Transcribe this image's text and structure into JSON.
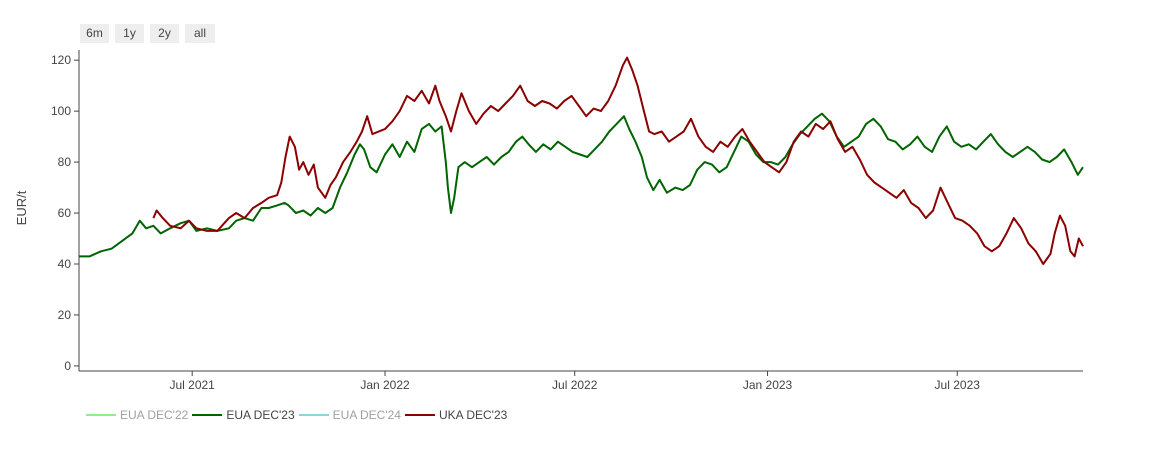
{
  "range_buttons": [
    "6m",
    "1y",
    "2y",
    "all"
  ],
  "colors": {
    "eua_dec22": "#90ee90",
    "eua_dec23": "#006400",
    "eua_dec24": "#8fd3dd",
    "uka_dec23": "#8b0000",
    "axis": "#444444",
    "text": "#444444"
  },
  "chart_data": {
    "type": "line",
    "ylabel": "EUR/t",
    "xlabel": "",
    "ylim": [
      -2,
      124
    ],
    "y_ticks": [
      "0",
      "20",
      "40",
      "60",
      "80",
      "100",
      "120"
    ],
    "x_range": [
      "2021-03-15",
      "2023-10-29"
    ],
    "x_ticks": [
      {
        "date": "2021-07-01",
        "label": "Jul 2021"
      },
      {
        "date": "2022-01-01",
        "label": "Jan 2022"
      },
      {
        "date": "2022-07-01",
        "label": "Jul 2022"
      },
      {
        "date": "2023-01-01",
        "label": "Jan 2023"
      },
      {
        "date": "2023-07-01",
        "label": "Jul 2023"
      }
    ],
    "legend_position": "bottom-left",
    "grid": false,
    "series": [
      {
        "name": "EUA DEC'22",
        "color": "#90ee90",
        "visible": false,
        "points": []
      },
      {
        "name": "EUA DEC'23",
        "color": "#006400",
        "visible": true,
        "points": [
          [
            "2021-03-15",
            43
          ],
          [
            "2021-03-25",
            43
          ],
          [
            "2021-04-05",
            45
          ],
          [
            "2021-04-15",
            46
          ],
          [
            "2021-04-25",
            49
          ],
          [
            "2021-05-05",
            52
          ],
          [
            "2021-05-12",
            57
          ],
          [
            "2021-05-18",
            54
          ],
          [
            "2021-05-25",
            55
          ],
          [
            "2021-06-01",
            52
          ],
          [
            "2021-06-10",
            54
          ],
          [
            "2021-06-20",
            56
          ],
          [
            "2021-06-28",
            57
          ],
          [
            "2021-07-05",
            53
          ],
          [
            "2021-07-15",
            54
          ],
          [
            "2021-07-25",
            53
          ],
          [
            "2021-08-05",
            54
          ],
          [
            "2021-08-12",
            57
          ],
          [
            "2021-08-20",
            58
          ],
          [
            "2021-08-28",
            57
          ],
          [
            "2021-09-05",
            62
          ],
          [
            "2021-09-12",
            62
          ],
          [
            "2021-09-20",
            63
          ],
          [
            "2021-09-27",
            64
          ],
          [
            "2021-10-01",
            63
          ],
          [
            "2021-10-08",
            60
          ],
          [
            "2021-10-15",
            61
          ],
          [
            "2021-10-22",
            59
          ],
          [
            "2021-10-29",
            62
          ],
          [
            "2021-11-05",
            60
          ],
          [
            "2021-11-12",
            62
          ],
          [
            "2021-11-19",
            70
          ],
          [
            "2021-11-26",
            76
          ],
          [
            "2021-12-03",
            83
          ],
          [
            "2021-12-08",
            87
          ],
          [
            "2021-12-12",
            85
          ],
          [
            "2021-12-18",
            78
          ],
          [
            "2021-12-24",
            76
          ],
          [
            "2022-01-01",
            83
          ],
          [
            "2022-01-08",
            87
          ],
          [
            "2022-01-15",
            82
          ],
          [
            "2022-01-22",
            88
          ],
          [
            "2022-01-29",
            84
          ],
          [
            "2022-02-05",
            93
          ],
          [
            "2022-02-12",
            95
          ],
          [
            "2022-02-18",
            92
          ],
          [
            "2022-02-24",
            94
          ],
          [
            "2022-02-28",
            80
          ],
          [
            "2022-03-02",
            70
          ],
          [
            "2022-03-05",
            60
          ],
          [
            "2022-03-08",
            66
          ],
          [
            "2022-03-12",
            78
          ],
          [
            "2022-03-18",
            80
          ],
          [
            "2022-03-25",
            78
          ],
          [
            "2022-04-01",
            80
          ],
          [
            "2022-04-08",
            82
          ],
          [
            "2022-04-15",
            79
          ],
          [
            "2022-04-22",
            82
          ],
          [
            "2022-04-29",
            84
          ],
          [
            "2022-05-06",
            88
          ],
          [
            "2022-05-12",
            90
          ],
          [
            "2022-05-18",
            87
          ],
          [
            "2022-05-25",
            84
          ],
          [
            "2022-06-01",
            87
          ],
          [
            "2022-06-08",
            85
          ],
          [
            "2022-06-15",
            88
          ],
          [
            "2022-06-22",
            86
          ],
          [
            "2022-06-29",
            84
          ],
          [
            "2022-07-06",
            83
          ],
          [
            "2022-07-13",
            82
          ],
          [
            "2022-07-20",
            85
          ],
          [
            "2022-07-27",
            88
          ],
          [
            "2022-08-03",
            92
          ],
          [
            "2022-08-10",
            95
          ],
          [
            "2022-08-17",
            98
          ],
          [
            "2022-08-22",
            93
          ],
          [
            "2022-08-28",
            88
          ],
          [
            "2022-09-03",
            82
          ],
          [
            "2022-09-08",
            74
          ],
          [
            "2022-09-14",
            69
          ],
          [
            "2022-09-20",
            73
          ],
          [
            "2022-09-27",
            68
          ],
          [
            "2022-10-05",
            70
          ],
          [
            "2022-10-12",
            69
          ],
          [
            "2022-10-19",
            71
          ],
          [
            "2022-10-26",
            77
          ],
          [
            "2022-11-02",
            80
          ],
          [
            "2022-11-09",
            79
          ],
          [
            "2022-11-16",
            76
          ],
          [
            "2022-11-23",
            78
          ],
          [
            "2022-11-30",
            84
          ],
          [
            "2022-12-07",
            90
          ],
          [
            "2022-12-14",
            88
          ],
          [
            "2022-12-21",
            83
          ],
          [
            "2022-12-28",
            80
          ],
          [
            "2023-01-04",
            80
          ],
          [
            "2023-01-11",
            79
          ],
          [
            "2023-01-18",
            82
          ],
          [
            "2023-01-25",
            87
          ],
          [
            "2023-02-01",
            91
          ],
          [
            "2023-02-08",
            94
          ],
          [
            "2023-02-15",
            97
          ],
          [
            "2023-02-22",
            99
          ],
          [
            "2023-03-01",
            96
          ],
          [
            "2023-03-08",
            90
          ],
          [
            "2023-03-15",
            86
          ],
          [
            "2023-03-22",
            88
          ],
          [
            "2023-03-29",
            90
          ],
          [
            "2023-04-05",
            95
          ],
          [
            "2023-04-12",
            97
          ],
          [
            "2023-04-19",
            94
          ],
          [
            "2023-04-26",
            89
          ],
          [
            "2023-05-03",
            88
          ],
          [
            "2023-05-10",
            85
          ],
          [
            "2023-05-17",
            87
          ],
          [
            "2023-05-24",
            90
          ],
          [
            "2023-05-31",
            86
          ],
          [
            "2023-06-07",
            84
          ],
          [
            "2023-06-14",
            90
          ],
          [
            "2023-06-21",
            94
          ],
          [
            "2023-06-28",
            88
          ],
          [
            "2023-07-05",
            86
          ],
          [
            "2023-07-12",
            87
          ],
          [
            "2023-07-19",
            85
          ],
          [
            "2023-07-26",
            88
          ],
          [
            "2023-08-02",
            91
          ],
          [
            "2023-08-09",
            87
          ],
          [
            "2023-08-16",
            84
          ],
          [
            "2023-08-23",
            82
          ],
          [
            "2023-08-30",
            84
          ],
          [
            "2023-09-06",
            86
          ],
          [
            "2023-09-13",
            84
          ],
          [
            "2023-09-20",
            81
          ],
          [
            "2023-09-27",
            80
          ],
          [
            "2023-10-04",
            82
          ],
          [
            "2023-10-11",
            85
          ],
          [
            "2023-10-18",
            80
          ],
          [
            "2023-10-24",
            75
          ],
          [
            "2023-10-29",
            78
          ]
        ]
      },
      {
        "name": "EUA DEC'24",
        "color": "#8fd3dd",
        "visible": false,
        "points": []
      },
      {
        "name": "UKA DEC'23",
        "color": "#8b0000",
        "visible": true,
        "points": [
          [
            "2021-05-25",
            58
          ],
          [
            "2021-05-28",
            61
          ],
          [
            "2021-06-03",
            58
          ],
          [
            "2021-06-10",
            55
          ],
          [
            "2021-06-20",
            54
          ],
          [
            "2021-06-28",
            57
          ],
          [
            "2021-07-05",
            54
          ],
          [
            "2021-07-15",
            53
          ],
          [
            "2021-07-25",
            53
          ],
          [
            "2021-08-05",
            58
          ],
          [
            "2021-08-12",
            60
          ],
          [
            "2021-08-20",
            58
          ],
          [
            "2021-08-28",
            62
          ],
          [
            "2021-09-05",
            64
          ],
          [
            "2021-09-12",
            66
          ],
          [
            "2021-09-20",
            67
          ],
          [
            "2021-09-24",
            72
          ],
          [
            "2021-09-28",
            82
          ],
          [
            "2021-10-02",
            90
          ],
          [
            "2021-10-07",
            86
          ],
          [
            "2021-10-11",
            77
          ],
          [
            "2021-10-15",
            80
          ],
          [
            "2021-10-20",
            75
          ],
          [
            "2021-10-25",
            79
          ],
          [
            "2021-10-29",
            70
          ],
          [
            "2021-11-05",
            66
          ],
          [
            "2021-11-10",
            71
          ],
          [
            "2021-11-15",
            74
          ],
          [
            "2021-11-22",
            80
          ],
          [
            "2021-11-29",
            84
          ],
          [
            "2021-12-05",
            88
          ],
          [
            "2021-12-10",
            92
          ],
          [
            "2021-12-15",
            98
          ],
          [
            "2021-12-20",
            91
          ],
          [
            "2022-01-01",
            93
          ],
          [
            "2022-01-08",
            96
          ],
          [
            "2022-01-15",
            100
          ],
          [
            "2022-01-22",
            106
          ],
          [
            "2022-01-29",
            104
          ],
          [
            "2022-02-05",
            108
          ],
          [
            "2022-02-12",
            103
          ],
          [
            "2022-02-18",
            110
          ],
          [
            "2022-02-22",
            104
          ],
          [
            "2022-02-28",
            98
          ],
          [
            "2022-03-05",
            92
          ],
          [
            "2022-03-10",
            100
          ],
          [
            "2022-03-15",
            107
          ],
          [
            "2022-03-22",
            100
          ],
          [
            "2022-03-29",
            95
          ],
          [
            "2022-04-05",
            99
          ],
          [
            "2022-04-12",
            102
          ],
          [
            "2022-04-19",
            100
          ],
          [
            "2022-04-26",
            103
          ],
          [
            "2022-05-03",
            106
          ],
          [
            "2022-05-10",
            110
          ],
          [
            "2022-05-17",
            104
          ],
          [
            "2022-05-24",
            102
          ],
          [
            "2022-05-31",
            104
          ],
          [
            "2022-06-07",
            103
          ],
          [
            "2022-06-14",
            101
          ],
          [
            "2022-06-21",
            104
          ],
          [
            "2022-06-28",
            106
          ],
          [
            "2022-07-05",
            102
          ],
          [
            "2022-07-12",
            98
          ],
          [
            "2022-07-19",
            101
          ],
          [
            "2022-07-26",
            100
          ],
          [
            "2022-08-02",
            104
          ],
          [
            "2022-08-09",
            110
          ],
          [
            "2022-08-16",
            118
          ],
          [
            "2022-08-20",
            121
          ],
          [
            "2022-08-25",
            116
          ],
          [
            "2022-08-30",
            110
          ],
          [
            "2022-09-05",
            100
          ],
          [
            "2022-09-10",
            92
          ],
          [
            "2022-09-15",
            91
          ],
          [
            "2022-09-22",
            92
          ],
          [
            "2022-09-29",
            88
          ],
          [
            "2022-10-06",
            90
          ],
          [
            "2022-10-13",
            92
          ],
          [
            "2022-10-20",
            97
          ],
          [
            "2022-10-27",
            90
          ],
          [
            "2022-11-03",
            86
          ],
          [
            "2022-11-10",
            84
          ],
          [
            "2022-11-17",
            88
          ],
          [
            "2022-11-24",
            86
          ],
          [
            "2022-12-01",
            90
          ],
          [
            "2022-12-08",
            93
          ],
          [
            "2022-12-15",
            88
          ],
          [
            "2022-12-22",
            84
          ],
          [
            "2022-12-29",
            80
          ],
          [
            "2023-01-05",
            78
          ],
          [
            "2023-01-12",
            76
          ],
          [
            "2023-01-19",
            80
          ],
          [
            "2023-01-26",
            88
          ],
          [
            "2023-02-02",
            92
          ],
          [
            "2023-02-09",
            90
          ],
          [
            "2023-02-16",
            95
          ],
          [
            "2023-02-23",
            93
          ],
          [
            "2023-03-02",
            96
          ],
          [
            "2023-03-09",
            89
          ],
          [
            "2023-03-16",
            84
          ],
          [
            "2023-03-23",
            86
          ],
          [
            "2023-03-30",
            81
          ],
          [
            "2023-04-06",
            75
          ],
          [
            "2023-04-13",
            72
          ],
          [
            "2023-04-20",
            70
          ],
          [
            "2023-04-27",
            68
          ],
          [
            "2023-05-04",
            66
          ],
          [
            "2023-05-11",
            69
          ],
          [
            "2023-05-18",
            64
          ],
          [
            "2023-05-25",
            62
          ],
          [
            "2023-06-01",
            58
          ],
          [
            "2023-06-08",
            61
          ],
          [
            "2023-06-15",
            70
          ],
          [
            "2023-06-22",
            64
          ],
          [
            "2023-06-29",
            58
          ],
          [
            "2023-07-06",
            57
          ],
          [
            "2023-07-13",
            55
          ],
          [
            "2023-07-20",
            52
          ],
          [
            "2023-07-27",
            47
          ],
          [
            "2023-08-03",
            45
          ],
          [
            "2023-08-10",
            47
          ],
          [
            "2023-08-17",
            52
          ],
          [
            "2023-08-24",
            58
          ],
          [
            "2023-08-31",
            54
          ],
          [
            "2023-09-07",
            48
          ],
          [
            "2023-09-14",
            45
          ],
          [
            "2023-09-21",
            40
          ],
          [
            "2023-09-28",
            44
          ],
          [
            "2023-10-02",
            52
          ],
          [
            "2023-10-07",
            59
          ],
          [
            "2023-10-12",
            55
          ],
          [
            "2023-10-17",
            45
          ],
          [
            "2023-10-21",
            43
          ],
          [
            "2023-10-25",
            50
          ],
          [
            "2023-10-29",
            47
          ]
        ]
      }
    ]
  }
}
